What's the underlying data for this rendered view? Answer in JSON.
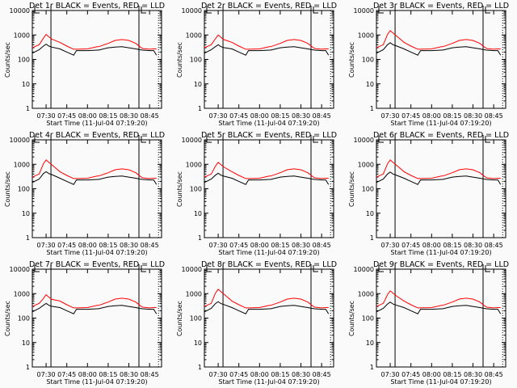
{
  "chart_data": {
    "type": "line",
    "x_minutes_since_0720": [
      0,
      5,
      8,
      10,
      12,
      14,
      20,
      25,
      30,
      32,
      40,
      47,
      48,
      55,
      60,
      65,
      70,
      75,
      78,
      80,
      85,
      88,
      90
    ],
    "x_tick_labels": [
      "07:30",
      "07:45",
      "08:00",
      "08:15",
      "08:30",
      "08:45"
    ],
    "x_tick_minutes": [
      10,
      25,
      40,
      55,
      70,
      85
    ],
    "xlim_minutes": [
      0,
      93.7
    ],
    "y_tick_labels": [
      "1",
      "10",
      "100",
      "1000",
      "10000"
    ],
    "ylim": [
      1,
      10000
    ],
    "yscale": "log",
    "ylabel": "Counts/sec",
    "colors": {
      "events": "#000000",
      "lld": "#ff0000"
    },
    "vertical_lines": {
      "solid_minutes": [
        13.5,
        77.3
      ],
      "dotted_minutes": [
        91.5
      ]
    },
    "panels": [
      {
        "title": "Det 1r BLACK = Events, RED = LLD",
        "xlabel": "Start Time (11-Jul-04 07:19:20)",
        "peak": 1050,
        "black_peak": 420
      },
      {
        "title": "Det 2r BLACK = Events, RED = LLD",
        "xlabel": "Start Time (11-Jul-04 07:19:20)",
        "peak": 1000,
        "black_peak": 400
      },
      {
        "title": "Det 3r BLACK = Events, RED = LLD",
        "xlabel": "Start Time (11-Jul-04 07:19:20)",
        "peak": 1500,
        "black_peak": 480
      },
      {
        "title": "Det 4r BLACK = Events, RED = LLD",
        "xlabel": "Start Time (11-Jul-04 07:19:20)",
        "peak": 1500,
        "black_peak": 500
      },
      {
        "title": "Det 5r BLACK = Events, RED = LLD",
        "xlabel": "Start Time (11-Jul-04 07:19:20)",
        "peak": 1200,
        "black_peak": 430
      },
      {
        "title": "Det 6r BLACK = Events, RED = LLD",
        "xlabel": "Start Time (11-Jul-04 07:19:20)",
        "peak": 1500,
        "black_peak": 480
      },
      {
        "title": "Det 7r BLACK = Events, RED = LLD",
        "xlabel": "Start Time (11-Jul-04 07:19:20)",
        "peak": 900,
        "black_peak": 400
      },
      {
        "title": "Det 8r BLACK = Events, RED = LLD",
        "xlabel": "Start Time (11-Jul-04 07:19:20)",
        "peak": 1500,
        "black_peak": 470
      },
      {
        "title": "Det 9r BLACK = Events, RED = LLD",
        "xlabel": "Start Time (11-Jul-04 07:19:20)",
        "peak": 1300,
        "black_peak": 450
      }
    ],
    "series": [
      {
        "name": "RED = LLD",
        "values": [
          300,
          400,
          700,
          1000,
          800,
          650,
          500,
          350,
          260,
          260,
          270,
          330,
          330,
          450,
          600,
          650,
          600,
          450,
          330,
          280,
          260,
          270,
          270
        ]
      },
      {
        "name": "BLACK = Events",
        "values": [
          180,
          250,
          350,
          420,
          350,
          320,
          270,
          200,
          150,
          230,
          230,
          240,
          240,
          300,
          320,
          330,
          300,
          270,
          250,
          240,
          230,
          230,
          150
        ]
      }
    ]
  }
}
